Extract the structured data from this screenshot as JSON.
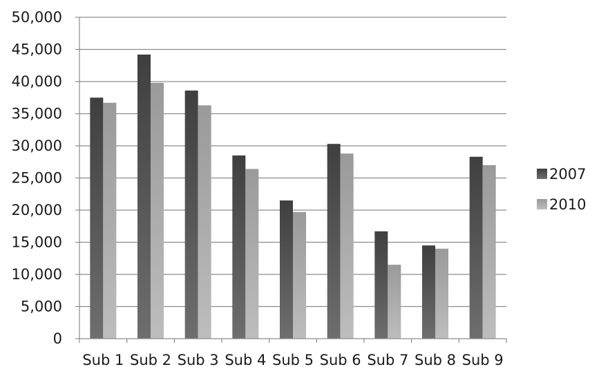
{
  "chart_data": {
    "type": "bar",
    "categories": [
      "Sub 1",
      "Sub 2",
      "Sub 3",
      "Sub 4",
      "Sub 5",
      "Sub 6",
      "Sub 7",
      "Sub 8",
      "Sub 9"
    ],
    "series": [
      {
        "name": "2007",
        "color": "#555555",
        "values": [
          37500,
          44200,
          38600,
          28500,
          21500,
          30300,
          16700,
          14500,
          28300
        ]
      },
      {
        "name": "2010",
        "color": "#a6a6a6",
        "values": [
          36700,
          39800,
          36300,
          26400,
          19700,
          28800,
          11500,
          14000,
          27000
        ]
      }
    ],
    "ylim": [
      0,
      50000
    ],
    "yticks": [
      0,
      5000,
      10000,
      15000,
      20000,
      25000,
      30000,
      35000,
      40000,
      45000,
      50000
    ],
    "ytick_labels": [
      "0",
      "5,000",
      "10,000",
      "15,000",
      "20,000",
      "25,000",
      "30,000",
      "35,000",
      "40,000",
      "45,000",
      "50,000"
    ],
    "grid": true,
    "legend_position": "right",
    "title": "",
    "xlabel": "",
    "ylabel": ""
  }
}
